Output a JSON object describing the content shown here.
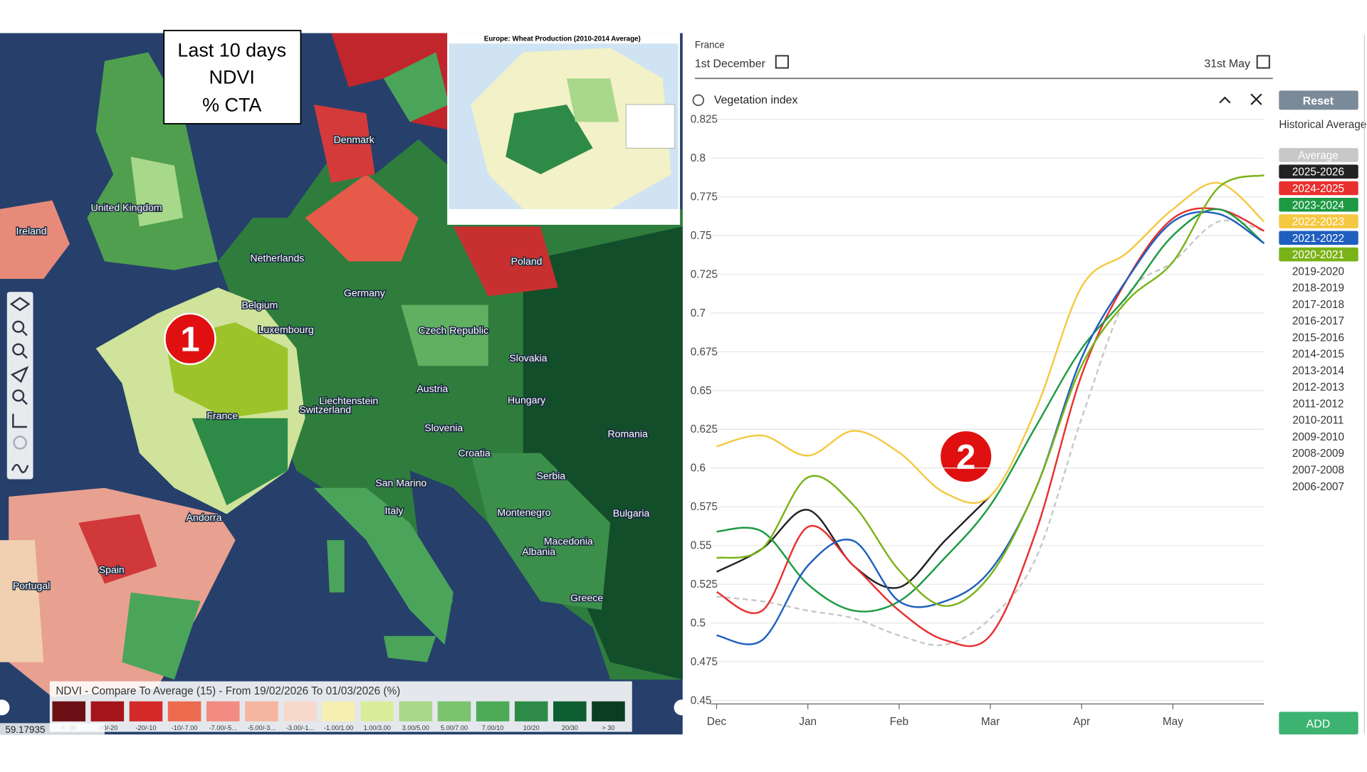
{
  "map": {
    "overlay": [
      "Last 10 days",
      "NDVI",
      "% CTA"
    ],
    "marker": "1",
    "inset_title": "Europe: Wheat Production (2010-2014 Average)",
    "countries": [
      "Denmark",
      "United Kingdom",
      "Ireland",
      "Netherlands",
      "Poland",
      "Germany",
      "Belgium",
      "Luxembourg",
      "Czech Republic",
      "Slovakia",
      "Austria",
      "Liechtenstein",
      "Switzerland",
      "Hungary",
      "France",
      "Slovenia",
      "Romania",
      "Croatia",
      "Serbia",
      "San Marino",
      "Italy",
      "Montenegro",
      "Bulgaria",
      "Andorra",
      "Macedonia",
      "Albania",
      "Spain",
      "Portugal",
      "Greece"
    ],
    "legend": {
      "title": "NDVI - Compare To Average (15) - From 19/02/2026 To 01/03/2026 (%)",
      "classes": [
        {
          "label": "< -30",
          "color": "#6b0f14"
        },
        {
          "label": "-30/-20",
          "color": "#a3151b"
        },
        {
          "label": "-20/-10",
          "color": "#d42a2a"
        },
        {
          "label": "-10/-7.00",
          "color": "#ee6a4f"
        },
        {
          "label": "-7.00/-5...",
          "color": "#f28c82"
        },
        {
          "label": "-5.00/-3...",
          "color": "#f5b5a0"
        },
        {
          "label": "-3.00/-1...",
          "color": "#f7d9cc"
        },
        {
          "label": "-1.00/1.00",
          "color": "#f5f0b0"
        },
        {
          "label": "1.00/3.00",
          "color": "#d9ec9a"
        },
        {
          "label": "3.00/5.00",
          "color": "#a8d88a"
        },
        {
          "label": "5.00/7.00",
          "color": "#7cc36e"
        },
        {
          "label": "7.00/10",
          "color": "#4daa57"
        },
        {
          "label": "10/20",
          "color": "#2e8b47"
        },
        {
          "label": "20/30",
          "color": "#0e5e32"
        },
        {
          "label": "> 30",
          "color": "#0a3d22"
        }
      ]
    },
    "coordinates": "59.17935"
  },
  "panel": {
    "region": "France",
    "start": "1st December",
    "end": "31st May",
    "layer": "Vegetation index",
    "reset": "Reset",
    "legend_title": "Historical Average",
    "marker": "2",
    "add": "ADD",
    "other_years": [
      "2019-2020",
      "2018-2019",
      "2017-2018",
      "2016-2017",
      "2015-2016",
      "2014-2015",
      "2013-2014",
      "2012-2013",
      "2011-2012",
      "2010-2011",
      "2009-2010",
      "2008-2009",
      "2007-2008",
      "2006-2007"
    ]
  },
  "chart_data": {
    "type": "line",
    "categories": [
      "Dec",
      null,
      "Jan",
      null,
      "Feb",
      null,
      "Mar",
      null,
      "Apr",
      null,
      "May",
      null,
      null
    ],
    "ylim": [
      0.45,
      0.825
    ],
    "yticks": [
      0.45,
      0.475,
      0.5,
      0.525,
      0.55,
      0.575,
      0.6,
      0.625,
      0.65,
      0.675,
      0.7,
      0.725,
      0.75,
      0.775,
      0.8,
      0.825
    ],
    "grid": true,
    "series": [
      {
        "name": "Average",
        "color": "#c8c8c8",
        "dashed": true,
        "values": [
          0.517,
          0.514,
          0.508,
          0.503,
          0.492,
          0.486,
          0.503,
          0.542,
          0.632,
          0.711,
          0.733,
          0.759,
          0.753
        ]
      },
      {
        "name": "2025-2026",
        "color": "#222222",
        "values": [
          0.533,
          0.548,
          0.573,
          0.537,
          0.523,
          0.553,
          0.582,
          null,
          null,
          null,
          null,
          null,
          null
        ]
      },
      {
        "name": "2024-2025",
        "color": "#e8302f",
        "values": [
          0.52,
          0.508,
          0.562,
          0.537,
          0.508,
          0.489,
          0.492,
          0.559,
          0.66,
          0.722,
          0.761,
          0.767,
          0.753
        ]
      },
      {
        "name": "2023-2024",
        "color": "#1e9a44",
        "values": [
          0.559,
          0.559,
          0.525,
          0.508,
          0.514,
          0.542,
          0.576,
          0.627,
          0.677,
          0.711,
          0.75,
          0.767,
          0.745
        ]
      },
      {
        "name": "2022-2023",
        "color": "#f5c842",
        "values": [
          0.614,
          0.621,
          0.608,
          0.624,
          0.61,
          0.584,
          0.582,
          0.638,
          0.717,
          0.739,
          0.767,
          0.784,
          0.759
        ]
      },
      {
        "name": "2021-2022",
        "color": "#1f5fbf",
        "values": [
          0.492,
          0.489,
          0.537,
          0.553,
          0.514,
          0.514,
          0.534,
          0.587,
          0.671,
          0.722,
          0.759,
          0.764,
          0.745
        ]
      },
      {
        "name": "2020-2021",
        "color": "#7ab317",
        "values": [
          0.542,
          0.548,
          0.594,
          0.576,
          0.534,
          0.511,
          0.531,
          0.587,
          0.666,
          0.708,
          0.733,
          0.781,
          0.789
        ]
      }
    ]
  }
}
